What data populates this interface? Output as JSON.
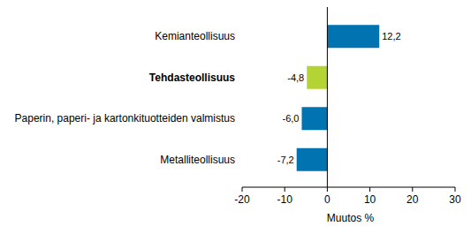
{
  "chart_data": {
    "type": "bar",
    "orientation": "horizontal",
    "categories": [
      "Kemianteollisuus",
      "Tehdasteollisuus",
      "Paperin, paperi- ja kartonkituotteiden valmistus",
      "Metalliteollisuus"
    ],
    "values": [
      12.2,
      -4.8,
      -6.0,
      -7.2
    ],
    "value_labels": [
      "12,2",
      "-4,8",
      "-6,0",
      "-7,2"
    ],
    "colors": [
      "#0073b0",
      "#b4d334",
      "#0073b0",
      "#0073b0"
    ],
    "x_label": "Muutos %",
    "xlim": [
      -20,
      30
    ],
    "xticks": [
      -20,
      -10,
      0,
      10,
      20,
      30
    ],
    "grid": false,
    "data_labels": true
  }
}
